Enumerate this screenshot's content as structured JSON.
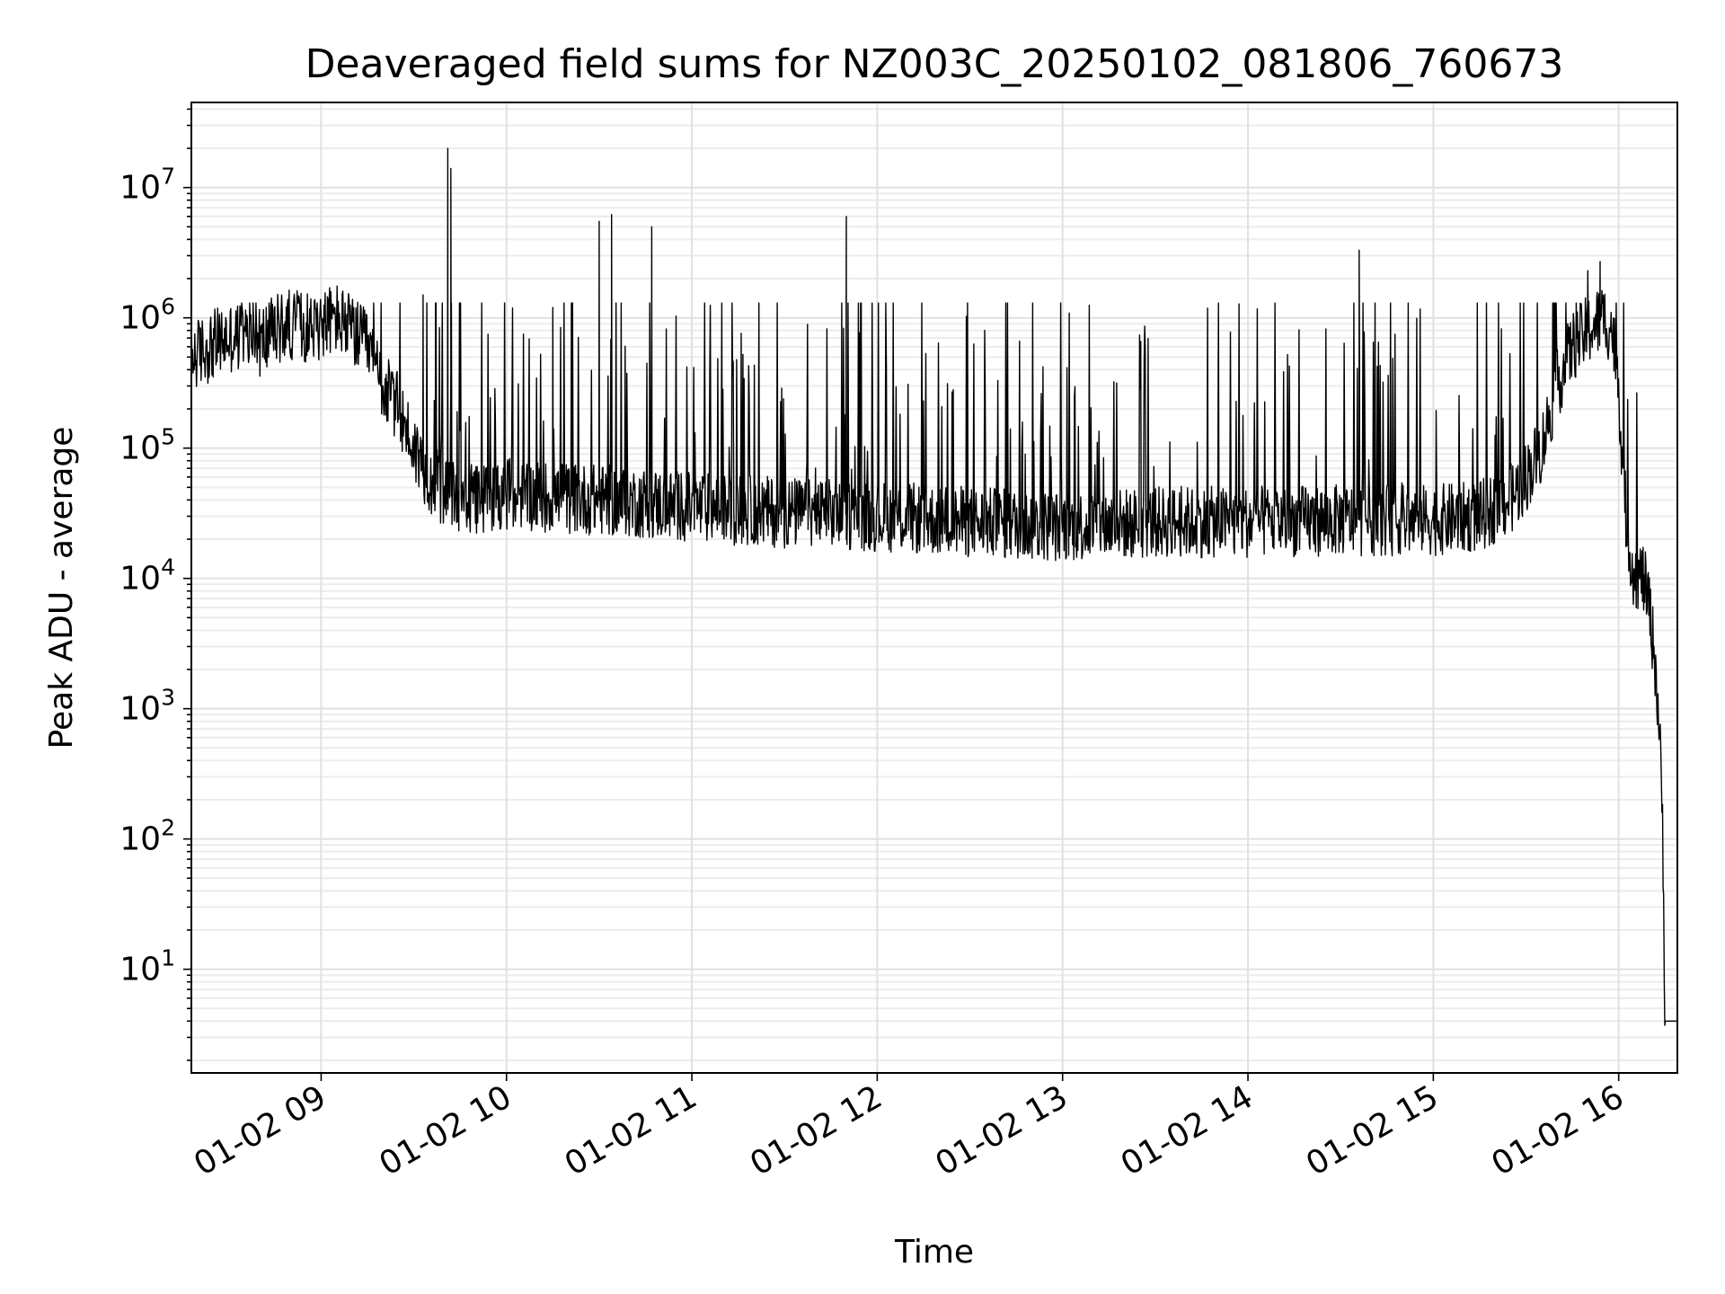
{
  "chart_data": {
    "type": "line",
    "title": "Deaveraged field sums for NZ003C_20250102_081806_760673",
    "xlabel": "Time",
    "ylabel": "Peak ADU - average",
    "yscale": "log",
    "grid": true,
    "line_color": "#000000",
    "grid_color": "#e1e1e1",
    "xlim": [
      "2025-01-02 08:18",
      "2025-01-02 16:19"
    ],
    "ylim": [
      1.6,
      45000000
    ],
    "x_ticks": [
      {
        "value": "2025-01-02 09:00",
        "label": "01-02 09"
      },
      {
        "value": "2025-01-02 10:00",
        "label": "01-02 10"
      },
      {
        "value": "2025-01-02 11:00",
        "label": "01-02 11"
      },
      {
        "value": "2025-01-02 12:00",
        "label": "01-02 12"
      },
      {
        "value": "2025-01-02 13:00",
        "label": "01-02 13"
      },
      {
        "value": "2025-01-02 14:00",
        "label": "01-02 14"
      },
      {
        "value": "2025-01-02 15:00",
        "label": "01-02 15"
      },
      {
        "value": "2025-01-02 16:00",
        "label": "01-02 16"
      }
    ],
    "y_ticks": [
      {
        "value": 10,
        "base": "10",
        "exp": "1"
      },
      {
        "value": 100,
        "base": "10",
        "exp": "2"
      },
      {
        "value": 1000,
        "base": "10",
        "exp": "3"
      },
      {
        "value": 10000,
        "base": "10",
        "exp": "4"
      },
      {
        "value": 100000,
        "base": "10",
        "exp": "5"
      },
      {
        "value": 1000000,
        "base": "10",
        "exp": "6"
      },
      {
        "value": 10000000,
        "base": "10",
        "exp": "7"
      }
    ],
    "series": [
      {
        "points": [
          [
            "2025-01-02 08:18",
            500000
          ],
          [
            "2025-01-02 08:25",
            620000
          ],
          [
            "2025-01-02 08:30",
            700000
          ],
          [
            "2025-01-02 08:35",
            720000
          ],
          [
            "2025-01-02 08:40",
            650000
          ],
          [
            "2025-01-02 08:45",
            800000
          ],
          [
            "2025-01-02 08:50",
            900000
          ],
          [
            "2025-01-02 08:55",
            850000
          ],
          [
            "2025-01-02 09:00",
            900000
          ],
          [
            "2025-01-02 09:05",
            1000000
          ],
          [
            "2025-01-02 09:10",
            800000
          ],
          [
            "2025-01-02 09:15",
            600000
          ],
          [
            "2025-01-02 09:20",
            300000
          ],
          [
            "2025-01-02 09:25",
            200000
          ],
          [
            "2025-01-02 09:30",
            100000
          ],
          [
            "2025-01-02 09:35",
            60000
          ],
          [
            "2025-01-02 09:40",
            45000
          ],
          [
            "2025-01-02 09:45",
            40000
          ],
          [
            "2025-01-02 09:50",
            40000
          ],
          [
            "2025-01-02 10:00",
            45000
          ],
          [
            "2025-01-02 10:15",
            42000
          ],
          [
            "2025-01-02 10:30",
            40000
          ],
          [
            "2025-01-02 10:45",
            38000
          ],
          [
            "2025-01-02 11:00",
            35000
          ],
          [
            "2025-01-02 11:30",
            32000
          ],
          [
            "2025-01-02 12:00",
            30000
          ],
          [
            "2025-01-02 12:30",
            27000
          ],
          [
            "2025-01-02 13:00",
            25000
          ],
          [
            "2025-01-02 13:30",
            27000
          ],
          [
            "2025-01-02 14:00",
            27000
          ],
          [
            "2025-01-02 14:30",
            28000
          ],
          [
            "2025-01-02 15:00",
            28000
          ],
          [
            "2025-01-02 15:15",
            30000
          ],
          [
            "2025-01-02 15:25",
            40000
          ],
          [
            "2025-01-02 15:30",
            60000
          ],
          [
            "2025-01-02 15:35",
            100000
          ],
          [
            "2025-01-02 15:40",
            300000
          ],
          [
            "2025-01-02 15:45",
            600000
          ],
          [
            "2025-01-02 15:50",
            800000
          ],
          [
            "2025-01-02 15:55",
            1000000
          ],
          [
            "2025-01-02 15:58",
            800000
          ],
          [
            "2025-01-02 16:00",
            300000
          ],
          [
            "2025-01-02 16:01",
            100000
          ],
          [
            "2025-01-02 16:02",
            40000
          ],
          [
            "2025-01-02 16:03",
            20000
          ],
          [
            "2025-01-02 16:05",
            11000
          ],
          [
            "2025-01-02 16:08",
            10000
          ],
          [
            "2025-01-02 16:10",
            6000
          ],
          [
            "2025-01-02 16:12",
            2000
          ],
          [
            "2025-01-02 16:13",
            800
          ],
          [
            "2025-01-02 16:14",
            200
          ],
          [
            "2025-01-02 16:14:30",
            50
          ],
          [
            "2025-01-02 16:15",
            4
          ],
          [
            "2025-01-02 16:19",
            4
          ]
        ],
        "spikes": [
          [
            "2025-01-02 09:41",
            20000000
          ],
          [
            "2025-01-02 09:42",
            14000000
          ],
          [
            "2025-01-02 10:30",
            5500000
          ],
          [
            "2025-01-02 10:34",
            6200000
          ],
          [
            "2025-01-02 10:47",
            5000000
          ],
          [
            "2025-01-02 11:50",
            6000000
          ],
          [
            "2025-01-02 14:36",
            3300000
          ],
          [
            "2025-01-02 15:50",
            2300000
          ],
          [
            "2025-01-02 15:54",
            2700000
          ],
          [
            "2025-01-02 09:33",
            1500000
          ],
          [
            "2025-01-02 09:37",
            1300000
          ],
          [
            "2025-01-02 10:15",
            1200000
          ]
        ]
      }
    ]
  }
}
